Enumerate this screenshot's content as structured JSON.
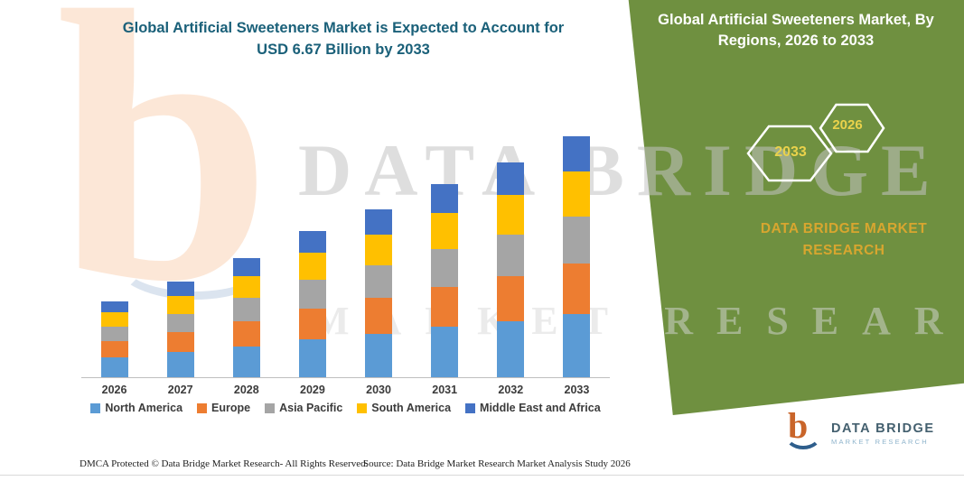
{
  "title": {
    "line1": "Global Artificial Sweeteners Market is Expected to Account for",
    "line2": "USD 6.67 Billion by 2033"
  },
  "banner": {
    "title": "Global Artificial Sweeteners Market, By Regions, 2026 to 2033",
    "hexagons": [
      "2033",
      "2026"
    ],
    "brand": {
      "line1": "DATA BRIDGE MARKET",
      "line2": "RESEARCH"
    },
    "green_color": "#6F9040",
    "accent_gold": "#D8A62F",
    "hex_year_color": "#EAD24B"
  },
  "watermark": {
    "letter": "b",
    "line1": "DATA BRIDGE",
    "line2": "MARKET RESEARCH"
  },
  "chart_data": {
    "type": "bar",
    "stacked": true,
    "title": "Global Artificial Sweeteners Market is Expected to Account for USD 6.67 Billion by 2033",
    "categories": [
      "2026",
      "2027",
      "2028",
      "2029",
      "2030",
      "2031",
      "2032",
      "2033"
    ],
    "series": [
      {
        "name": "North America",
        "color": "#5B9BD5",
        "values": [
          0.55,
          0.7,
          0.85,
          1.05,
          1.2,
          1.4,
          1.55,
          1.75
        ]
      },
      {
        "name": "Europe",
        "color": "#ED7D31",
        "values": [
          0.45,
          0.55,
          0.7,
          0.85,
          1.0,
          1.1,
          1.25,
          1.4
        ]
      },
      {
        "name": "Asia Pacific",
        "color": "#A5A5A5",
        "values": [
          0.4,
          0.5,
          0.65,
          0.8,
          0.9,
          1.05,
          1.15,
          1.3
        ]
      },
      {
        "name": "South America",
        "color": "#FFC000",
        "values": [
          0.4,
          0.5,
          0.6,
          0.75,
          0.85,
          1.0,
          1.1,
          1.25
        ]
      },
      {
        "name": "Middle East and Africa",
        "color": "#4472C4",
        "values": [
          0.3,
          0.4,
          0.5,
          0.6,
          0.7,
          0.8,
          0.9,
          0.97
        ]
      }
    ],
    "xlabel": "",
    "ylabel": "",
    "ylim": [
      0,
      7
    ],
    "grid": false,
    "legend_position": "bottom"
  },
  "footer": {
    "left": "DMCA Protected © Data Bridge Market Research-  All Rights Reserved.",
    "source": "Source: Data Bridge Market Research  Market Analysis Study 2026"
  },
  "logo": {
    "letter": "b",
    "name": "DATA BRIDGE",
    "tagline": "MARKET RESEARCH"
  }
}
